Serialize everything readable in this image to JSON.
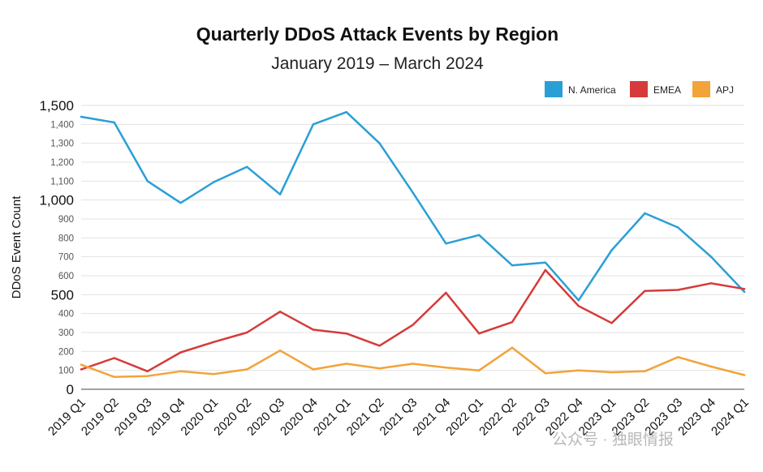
{
  "chart_data": {
    "type": "line",
    "title": "Quarterly DDoS Attack Events by Region",
    "subtitle": "January 2019 – March 2024",
    "xlabel": "",
    "ylabel": "DDoS Event Count",
    "ylim": [
      0,
      1500
    ],
    "yticks": [
      {
        "value": 0,
        "label": "0",
        "major": true
      },
      {
        "value": 100,
        "label": "100",
        "major": false
      },
      {
        "value": 200,
        "label": "200",
        "major": false
      },
      {
        "value": 300,
        "label": "300",
        "major": false
      },
      {
        "value": 400,
        "label": "400",
        "major": false
      },
      {
        "value": 500,
        "label": "500",
        "major": true
      },
      {
        "value": 600,
        "label": "600",
        "major": false
      },
      {
        "value": 700,
        "label": "700",
        "major": false
      },
      {
        "value": 800,
        "label": "800",
        "major": false
      },
      {
        "value": 900,
        "label": "900",
        "major": false
      },
      {
        "value": 1000,
        "label": "1,000",
        "major": true
      },
      {
        "value": 1100,
        "label": "1,100",
        "major": false
      },
      {
        "value": 1200,
        "label": "1,200",
        "major": false
      },
      {
        "value": 1300,
        "label": "1,300",
        "major": false
      },
      {
        "value": 1400,
        "label": "1,400",
        "major": false
      },
      {
        "value": 1500,
        "label": "1,500",
        "major": true
      }
    ],
    "categories": [
      "2019 Q1",
      "2019 Q2",
      "2019 Q3",
      "2019 Q4",
      "2020 Q1",
      "2020 Q2",
      "2020 Q3",
      "2020 Q4",
      "2021 Q1",
      "2021 Q2",
      "2021 Q3",
      "2021 Q4",
      "2022 Q1",
      "2022 Q2",
      "2022 Q3",
      "2022 Q4",
      "2023 Q1",
      "2023 Q2",
      "2023 Q3",
      "2023 Q4",
      "2024 Q1"
    ],
    "legend_position": "top-right",
    "series": [
      {
        "name": "N. America",
        "color": "#2a9fd6",
        "values": [
          1440,
          1410,
          1100,
          985,
          1095,
          1175,
          1030,
          1400,
          1465,
          1300,
          1040,
          770,
          815,
          655,
          670,
          470,
          735,
          930,
          855,
          700,
          515
        ]
      },
      {
        "name": "EMEA",
        "color": "#d63a3a",
        "values": [
          105,
          165,
          95,
          195,
          250,
          300,
          410,
          315,
          295,
          230,
          340,
          510,
          295,
          355,
          630,
          440,
          350,
          520,
          525,
          560,
          530
        ]
      },
      {
        "name": "APJ",
        "color": "#f2a33a",
        "values": [
          130,
          65,
          70,
          95,
          80,
          105,
          205,
          105,
          135,
          110,
          135,
          115,
          100,
          220,
          85,
          100,
          90,
          95,
          170,
          120,
          75
        ]
      }
    ]
  },
  "watermark": {
    "text": "公众号 · 独眼情报"
  },
  "colors": {
    "grid": "#e2e2e2",
    "axis": "#444444"
  }
}
